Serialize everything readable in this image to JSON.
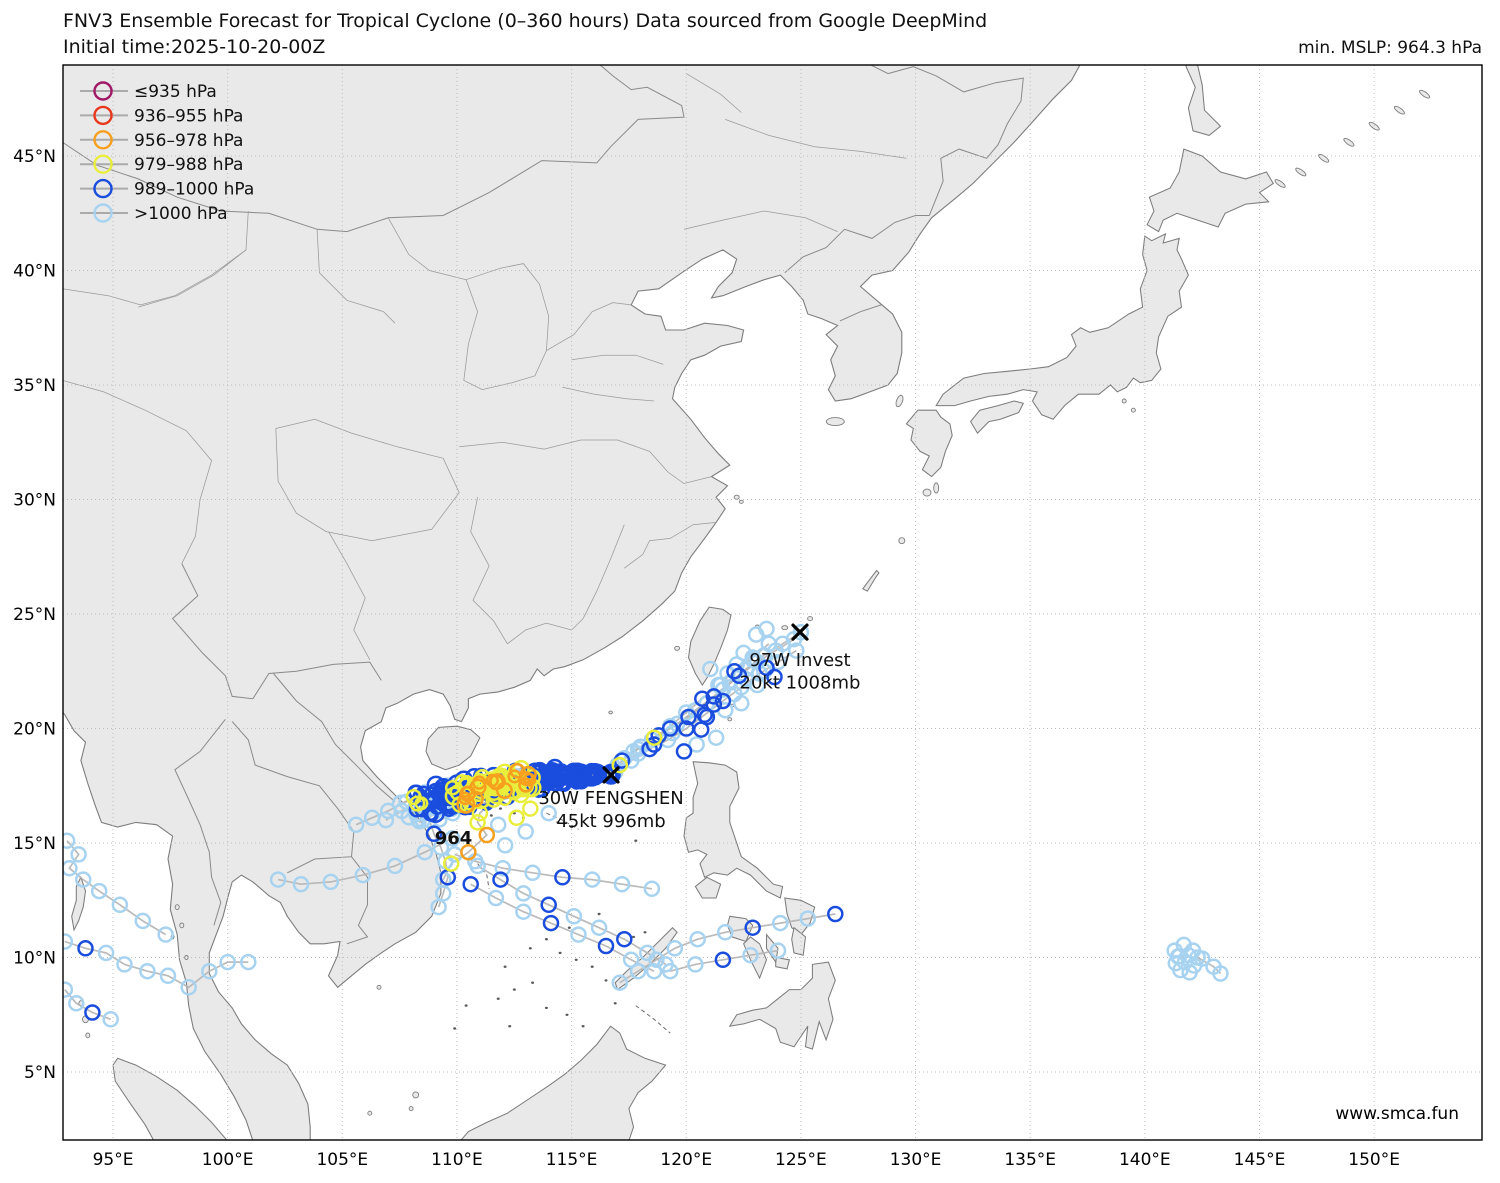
{
  "header": {
    "title_line1": "FNV3 Ensemble Forecast for Tropical Cyclone (0–360 hours) Data sourced from Google DeepMind",
    "title_line2": "Initial time:2025-10-20-00Z",
    "min_mslp_label": "min. MSLP: 964.3 hPa"
  },
  "watermark": "www.smca.fun",
  "legend": {
    "items": [
      {
        "label": "≤935 hPa",
        "color": "#a01a66"
      },
      {
        "label": "936–955 hPa",
        "color": "#e8391f"
      },
      {
        "label": "956–978 hPa",
        "color": "#f79f1e"
      },
      {
        "label": "979–988 hPa",
        "color": "#e9ee3c"
      },
      {
        "label": "989–1000 hPa",
        "color": "#1a4ddd"
      },
      {
        "label": ">1000 hPa",
        "color": "#a7d3f1"
      }
    ]
  },
  "axes": {
    "lon_ticks": [
      {
        "lon": 95,
        "label": "95°E"
      },
      {
        "lon": 100,
        "label": "100°E"
      },
      {
        "lon": 105,
        "label": "105°E"
      },
      {
        "lon": 110,
        "label": "110°E"
      },
      {
        "lon": 115,
        "label": "115°E"
      },
      {
        "lon": 120,
        "label": "120°E"
      },
      {
        "lon": 125,
        "label": "125°E"
      },
      {
        "lon": 130,
        "label": "130°E"
      },
      {
        "lon": 135,
        "label": "135°E"
      },
      {
        "lon": 140,
        "label": "140°E"
      },
      {
        "lon": 145,
        "label": "145°E"
      },
      {
        "lon": 150,
        "label": "150°E"
      }
    ],
    "lat_ticks": [
      {
        "lat": 45,
        "label": "45°N"
      },
      {
        "lat": 40,
        "label": "40°N"
      },
      {
        "lat": 35,
        "label": "35°N"
      },
      {
        "lat": 30,
        "label": "30°N"
      },
      {
        "lat": 25,
        "label": "25°N"
      },
      {
        "lat": 20,
        "label": "20°N"
      },
      {
        "lat": 15,
        "label": "15°N"
      },
      {
        "lat": 10,
        "label": "10°N"
      },
      {
        "lat": 5,
        "label": "5°N"
      }
    ]
  },
  "annotations": {
    "invest": {
      "line1": "97W Invest",
      "line2": "20kt 1008mb",
      "lon": 124.96,
      "lat": 24.21,
      "text_lat1": 23.0,
      "text_lat2": 22.0
    },
    "fengshen": {
      "line1": "30W FENGSHEN",
      "line2": "45kt 996mb",
      "lon": 116.72,
      "lat": 17.97,
      "text_lat1": 16.97,
      "text_lat2": 15.97
    },
    "min_pressure": {
      "text": "964",
      "lon": 109.85,
      "lat": 15.22
    }
  },
  "chart_data": {
    "type": "map-tracks",
    "category_colors": [
      "#a7d3f1",
      "#1a4ddd",
      "#e9ee3c",
      "#f79f1e",
      "#e8391f",
      "#a01a66"
    ],
    "cluster": {
      "start": [
        116.72,
        17.97
      ],
      "members": 30,
      "steps": 11,
      "seed": 20251020,
      "end_lon": [
        107.9,
        109.8
      ],
      "end_lat": [
        16.15,
        17.5
      ]
    },
    "tracks": [
      {
        "pts": [
          [
            125.0,
            24.2
          ],
          [
            124.2,
            23.7
          ],
          [
            123.4,
            23.2
          ],
          [
            122.6,
            22.6
          ],
          [
            121.9,
            22.0
          ],
          [
            121.2,
            21.4
          ],
          [
            120.4,
            20.8
          ],
          [
            119.6,
            20.2
          ],
          [
            118.8,
            19.7
          ],
          [
            118.0,
            19.2
          ],
          [
            117.3,
            18.7
          ],
          [
            116.7,
            18.1
          ]
        ],
        "cats": [
          0,
          0,
          0,
          0,
          0,
          1,
          0,
          0,
          1,
          0,
          0,
          1
        ]
      },
      {
        "pts": [
          [
            124.7,
            23.9
          ],
          [
            123.9,
            23.4
          ],
          [
            123.1,
            22.9
          ],
          [
            122.3,
            22.3
          ],
          [
            121.6,
            21.7
          ],
          [
            120.9,
            21.1
          ],
          [
            120.1,
            20.5
          ],
          [
            119.3,
            20.0
          ],
          [
            118.5,
            19.5
          ],
          [
            117.7,
            19.0
          ],
          [
            117.0,
            18.4
          ]
        ],
        "cats": [
          0,
          0,
          0,
          1,
          0,
          0,
          1,
          1,
          0,
          0,
          0
        ]
      },
      {
        "pts": [
          [
            124.8,
            23.4
          ],
          [
            124.0,
            22.9
          ],
          [
            123.2,
            22.4
          ],
          [
            122.4,
            21.8
          ],
          [
            121.6,
            21.2
          ],
          [
            120.8,
            20.6
          ],
          [
            120.0,
            20.0
          ],
          [
            119.2,
            19.5
          ],
          [
            118.4,
            19.1
          ],
          [
            117.6,
            18.6
          ],
          [
            116.9,
            18.1
          ]
        ],
        "cats": [
          0,
          0,
          0,
          0,
          1,
          1,
          1,
          0,
          1,
          0,
          0
        ]
      },
      {
        "pts": [
          [
            123.6,
            23.7
          ],
          [
            122.9,
            23.1
          ],
          [
            122.1,
            22.5
          ],
          [
            121.4,
            21.9
          ],
          [
            120.7,
            21.3
          ],
          [
            120.0,
            20.7
          ],
          [
            119.3,
            20.1
          ],
          [
            118.6,
            19.6
          ],
          [
            117.9,
            19.1
          ],
          [
            117.2,
            18.6
          ]
        ],
        "cats": [
          0,
          0,
          1,
          0,
          1,
          0,
          0,
          2,
          0,
          1
        ]
      },
      {
        "pts": [
          [
            119.4,
            19.8
          ],
          [
            118.6,
            19.3
          ],
          [
            117.9,
            18.9
          ],
          [
            117.1,
            18.4
          ],
          [
            116.5,
            18.0
          ]
        ],
        "cats": [
          0,
          1,
          0,
          2,
          1
        ]
      },
      {
        "pts": [
          [
            112.4,
            17.4
          ],
          [
            111.6,
            16.9
          ],
          [
            111.0,
            16.3
          ],
          [
            110.9,
            15.9
          ],
          [
            111.3,
            15.35
          ],
          [
            110.5,
            14.6
          ],
          [
            109.75,
            14.1
          ],
          [
            109.4,
            13.4
          ]
        ],
        "cats": [
          1,
          2,
          2,
          2,
          3,
          3,
          2,
          0
        ]
      },
      {
        "pts": [
          [
            108.9,
            16.6
          ],
          [
            108.8,
            16.0
          ],
          [
            109.0,
            15.4
          ],
          [
            109.3,
            14.8
          ],
          [
            109.5,
            14.2
          ],
          [
            109.6,
            13.5
          ],
          [
            109.4,
            12.8
          ],
          [
            109.2,
            12.2
          ]
        ],
        "cats": [
          0,
          0,
          1,
          0,
          0,
          1,
          0,
          0
        ]
      },
      {
        "pts": [
          [
            108.6,
            17.2
          ],
          [
            107.8,
            16.8
          ],
          [
            107.0,
            16.4
          ],
          [
            106.3,
            16.1
          ],
          [
            105.6,
            15.8
          ]
        ],
        "cats": [
          0,
          0,
          0,
          0,
          0
        ]
      },
      {
        "pts": [
          [
            108.4,
            16.8
          ],
          [
            107.6,
            16.4
          ],
          [
            106.9,
            16.0
          ]
        ],
        "cats": [
          0,
          0,
          0
        ]
      },
      {
        "pts": [
          [
            110.9,
            14.0
          ],
          [
            111.9,
            13.4
          ],
          [
            112.9,
            12.8
          ],
          [
            114.0,
            12.3
          ],
          [
            115.1,
            11.8
          ],
          [
            116.2,
            11.3
          ],
          [
            117.3,
            10.8
          ],
          [
            118.3,
            10.2
          ],
          [
            119.1,
            9.7
          ]
        ],
        "cats": [
          0,
          1,
          0,
          1,
          0,
          0,
          1,
          0,
          0
        ]
      },
      {
        "pts": [
          [
            110.6,
            13.2
          ],
          [
            111.7,
            12.6
          ],
          [
            112.9,
            12.0
          ],
          [
            114.1,
            11.5
          ],
          [
            115.3,
            11.0
          ],
          [
            116.5,
            10.5
          ],
          [
            117.6,
            9.9
          ],
          [
            118.6,
            9.4
          ]
        ],
        "cats": [
          1,
          0,
          0,
          1,
          0,
          1,
          0,
          0
        ]
      },
      {
        "pts": [
          [
            109.8,
            15.2
          ],
          [
            108.6,
            14.6
          ],
          [
            107.3,
            14.0
          ],
          [
            105.9,
            13.6
          ],
          [
            104.5,
            13.3
          ],
          [
            103.2,
            13.2
          ],
          [
            102.2,
            13.4
          ]
        ],
        "cats": [
          0,
          0,
          0,
          0,
          0,
          0,
          0
        ]
      },
      {
        "pts": [
          [
            118.5,
            13.0
          ],
          [
            117.2,
            13.2
          ],
          [
            115.9,
            13.4
          ],
          [
            114.6,
            13.5
          ],
          [
            113.3,
            13.7
          ],
          [
            112.0,
            13.9
          ],
          [
            110.8,
            14.2
          ],
          [
            109.9,
            14.5
          ]
        ],
        "cats": [
          0,
          0,
          0,
          1,
          0,
          0,
          0,
          0
        ]
      },
      {
        "pts": [
          [
            126.5,
            11.9
          ],
          [
            125.3,
            11.7
          ],
          [
            124.1,
            11.5
          ],
          [
            122.9,
            11.3
          ],
          [
            121.7,
            11.1
          ],
          [
            120.5,
            10.8
          ],
          [
            119.5,
            10.4
          ],
          [
            118.7,
            9.9
          ],
          [
            117.9,
            9.4
          ],
          [
            117.1,
            8.9
          ]
        ],
        "cats": [
          1,
          0,
          0,
          1,
          0,
          0,
          0,
          0,
          0,
          0
        ]
      },
      {
        "pts": [
          [
            124.0,
            10.3
          ],
          [
            122.8,
            10.1
          ],
          [
            121.6,
            9.9
          ],
          [
            120.4,
            9.7
          ],
          [
            119.3,
            9.4
          ]
        ],
        "cats": [
          0,
          0,
          1,
          0,
          0
        ]
      },
      {
        "pts": [
          [
            93.0,
            15.1
          ],
          [
            93.5,
            14.5
          ],
          [
            93.1,
            13.9
          ],
          [
            93.7,
            13.4
          ],
          [
            94.4,
            12.9
          ],
          [
            95.3,
            12.3
          ],
          [
            96.3,
            11.6
          ],
          [
            97.3,
            11.0
          ]
        ],
        "cats": [
          0,
          0,
          0,
          0,
          0,
          0,
          0,
          0
        ]
      },
      {
        "pts": [
          [
            92.9,
            10.7
          ],
          [
            93.8,
            10.4
          ],
          [
            94.7,
            10.2
          ],
          [
            95.5,
            9.7
          ],
          [
            96.5,
            9.4
          ],
          [
            97.4,
            9.2
          ],
          [
            98.3,
            8.7
          ],
          [
            99.2,
            9.4
          ],
          [
            100.0,
            9.8
          ],
          [
            100.9,
            9.8
          ]
        ],
        "cats": [
          0,
          1,
          0,
          0,
          0,
          0,
          0,
          0,
          0,
          0
        ]
      },
      {
        "pts": [
          [
            92.9,
            8.6
          ],
          [
            93.4,
            8.0
          ],
          [
            94.1,
            7.6
          ],
          [
            94.9,
            7.3
          ]
        ],
        "cats": [
          0,
          0,
          1,
          0
        ]
      },
      {
        "pts": [
          [
            141.5,
            10.05
          ],
          [
            142.3,
            10.0
          ],
          [
            143.0,
            9.6
          ],
          [
            143.3,
            9.3
          ]
        ],
        "cats": [
          0,
          0,
          0,
          0
        ]
      }
    ],
    "scatter": [
      [
        122.5,
        23.3,
        0
      ],
      [
        122.9,
        23.0,
        0
      ],
      [
        122.2,
        22.8,
        0
      ],
      [
        121.8,
        22.4,
        0
      ],
      [
        122.6,
        22.15,
        0
      ],
      [
        123.1,
        21.9,
        0
      ],
      [
        121.5,
        21.9,
        0
      ],
      [
        122.1,
        21.5,
        0
      ],
      [
        121.2,
        21.05,
        1
      ],
      [
        121.7,
        20.8,
        0
      ],
      [
        120.9,
        20.5,
        1
      ],
      [
        122.4,
        21.1,
        0
      ],
      [
        121.05,
        22.6,
        0
      ],
      [
        123.4,
        22.5,
        0
      ],
      [
        120.65,
        19.95,
        1
      ],
      [
        121.3,
        19.6,
        0
      ],
      [
        120.45,
        19.3,
        0
      ],
      [
        119.9,
        19.0,
        1
      ],
      [
        123.5,
        24.35,
        0
      ],
      [
        123.05,
        24.1,
        0
      ],
      [
        123.5,
        22.65,
        1
      ],
      [
        123.85,
        22.25,
        1
      ],
      [
        112.6,
        16.1,
        2
      ],
      [
        113.2,
        16.5,
        2
      ],
      [
        111.8,
        15.8,
        0
      ],
      [
        113.0,
        15.5,
        0
      ],
      [
        112.1,
        14.9,
        0
      ],
      [
        114.0,
        16.3,
        0
      ],
      [
        141.3,
        10.3,
        0
      ],
      [
        141.7,
        10.55,
        0
      ],
      [
        142.1,
        10.3,
        0
      ],
      [
        141.45,
        10.05,
        0
      ],
      [
        141.9,
        10.1,
        0
      ],
      [
        141.35,
        9.75,
        0
      ],
      [
        141.75,
        9.8,
        0
      ],
      [
        142.15,
        9.65,
        0
      ],
      [
        141.55,
        9.45,
        0
      ],
      [
        141.95,
        9.35,
        0
      ],
      [
        142.5,
        9.95,
        0
      ]
    ]
  }
}
